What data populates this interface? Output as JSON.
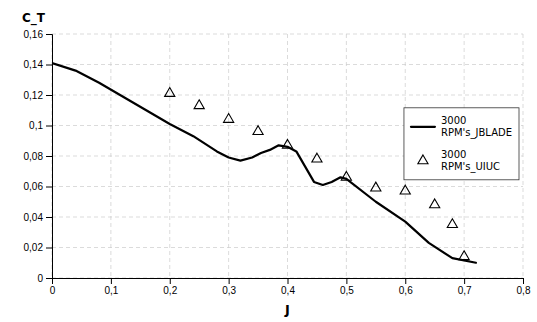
{
  "chart_data": {
    "type": "line",
    "xlabel": "J",
    "ylabel": "C_T",
    "series": [
      {
        "name": "3000\nRPM's_JBLADE",
        "type": "line",
        "color": "#000000",
        "line_style": "solid",
        "x": [
          0,
          0.04,
          0.08,
          0.12,
          0.16,
          0.2,
          0.24,
          0.28,
          0.3,
          0.32,
          0.34,
          0.355,
          0.37,
          0.385,
          0.4,
          0.415,
          0.43,
          0.445,
          0.46,
          0.475,
          0.49,
          0.5,
          0.55,
          0.6,
          0.64,
          0.68,
          0.72
        ],
        "values": [
          0.141,
          0.136,
          0.128,
          0.119,
          0.11,
          0.101,
          0.093,
          0.083,
          0.079,
          0.077,
          0.079,
          0.082,
          0.084,
          0.087,
          0.086,
          0.083,
          0.073,
          0.063,
          0.061,
          0.063,
          0.066,
          0.065,
          0.05,
          0.037,
          0.023,
          0.013,
          0.01
        ]
      },
      {
        "name": "3000\nRPM's_UIUC",
        "type": "scatter",
        "color": "#000000",
        "marker": "triangle",
        "x": [
          0.2,
          0.25,
          0.3,
          0.35,
          0.4,
          0.45,
          0.5,
          0.55,
          0.6,
          0.65,
          0.68,
          0.7
        ],
        "values": [
          0.121,
          0.113,
          0.104,
          0.096,
          0.087,
          0.078,
          0.066,
          0.059,
          0.057,
          0.048,
          0.035,
          0.014
        ]
      }
    ],
    "xlim": [
      0,
      0.8
    ],
    "ylim": [
      0,
      0.16
    ],
    "xticks": [
      0,
      {
        "value": 0.1,
        "label": "0,1"
      },
      {
        "value": 0.2,
        "label": "0,2"
      },
      {
        "value": 0.3,
        "label": "0,3"
      },
      {
        "value": 0.4,
        "label": "0,4"
      },
      {
        "value": 0.5,
        "label": "0,5"
      },
      {
        "value": 0.6,
        "label": "0,6"
      },
      {
        "value": 0.7,
        "label": "0,7"
      },
      {
        "value": 0.8,
        "label": "0,8"
      }
    ],
    "yticks": [
      0,
      {
        "value": 0.02,
        "label": "0,02"
      },
      {
        "value": 0.04,
        "label": "0,04"
      },
      {
        "value": 0.06,
        "label": "0,06"
      },
      {
        "value": 0.08,
        "label": "0,08"
      },
      {
        "value": 0.1,
        "label": "0,1"
      },
      {
        "value": 0.12,
        "label": "0,12"
      },
      {
        "value": 0.14,
        "label": "0,14"
      },
      {
        "value": 0.16,
        "label": "0,16"
      }
    ],
    "grid": true,
    "legend": "right"
  }
}
